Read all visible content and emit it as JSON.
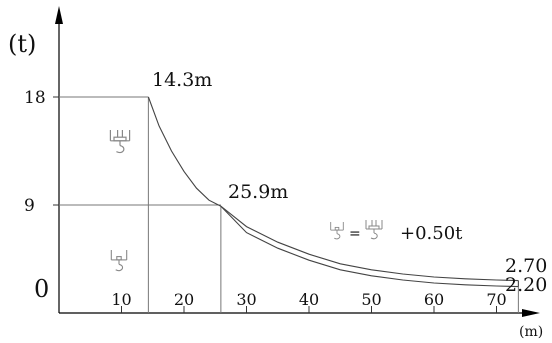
{
  "chart_data": {
    "type": "line",
    "ylabel": "(t)",
    "xlabel": "(m)",
    "xlim": [
      0,
      75
    ],
    "ylim": [
      0,
      18
    ],
    "x_ticks": [
      10,
      20,
      30,
      40,
      50,
      60,
      70
    ],
    "y_ticks": [
      {
        "value": 18,
        "label": "18"
      },
      {
        "value": 9,
        "label": "9"
      },
      {
        "value": 0,
        "label": "0"
      }
    ],
    "series": [
      {
        "key": "main",
        "x": [
          14.3,
          16,
          18,
          20,
          22,
          24,
          25.9,
          30,
          35,
          40,
          45,
          50,
          55,
          60,
          65,
          70,
          73.5
        ],
        "y": [
          18,
          15.6,
          13.5,
          11.8,
          10.4,
          9.4,
          8.9,
          7.2,
          5.9,
          4.9,
          4.1,
          3.6,
          3.25,
          3.0,
          2.85,
          2.75,
          2.7
        ]
      },
      {
        "key": "auxiliary",
        "x": [
          25.9,
          30,
          35,
          40,
          45,
          50,
          55,
          60,
          65,
          70,
          73.5
        ],
        "y": [
          8.9,
          6.7,
          5.4,
          4.4,
          3.6,
          3.1,
          2.75,
          2.5,
          2.35,
          2.25,
          2.2
        ]
      }
    ],
    "annotations": [
      {
        "text": "14.3m",
        "x": 14.3,
        "y": 18
      },
      {
        "text": "25.9m",
        "x": 25.9,
        "y": 8.9
      },
      {
        "text": "2.70",
        "x": 73.5,
        "y": 2.7
      },
      {
        "text": "2.20",
        "x": 73.5,
        "y": 2.2
      },
      {
        "text": "+0.50t"
      }
    ],
    "region_lines": [
      {
        "x": 14.3,
        "y_top": 18
      },
      {
        "x": 25.9,
        "y_top": 8.9
      },
      {
        "x": 73.5,
        "y_top": 2.2
      }
    ],
    "hook_icons": [
      "four-sheave-hook-icon",
      "single-hook-icon"
    ]
  }
}
